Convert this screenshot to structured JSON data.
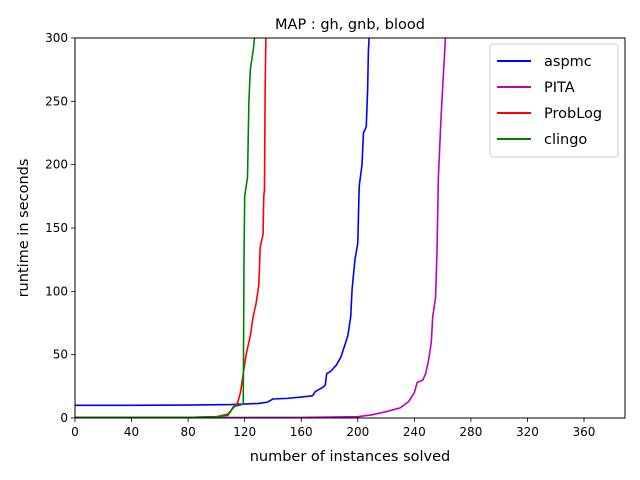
{
  "chart_data": {
    "type": "line",
    "title": "MAP : gh, gnb, blood",
    "xlabel": "number of instances solved",
    "ylabel": "runtime in seconds",
    "xlim": [
      0,
      389
    ],
    "ylim": [
      0,
      300
    ],
    "xticks": [
      0,
      40,
      80,
      120,
      160,
      200,
      240,
      280,
      320,
      360
    ],
    "yticks": [
      0,
      50,
      100,
      150,
      200,
      250,
      300
    ],
    "grid": false,
    "legend_position": "top-right",
    "series": [
      {
        "name": "aspmc",
        "color": "#0000ff",
        "points": [
          [
            0,
            10
          ],
          [
            40,
            10
          ],
          [
            80,
            10.2
          ],
          [
            110,
            10.6
          ],
          [
            120,
            11
          ],
          [
            130,
            11.5
          ],
          [
            136,
            12.5
          ],
          [
            140,
            15
          ],
          [
            150,
            15.5
          ],
          [
            160,
            16.5
          ],
          [
            168,
            17.5
          ],
          [
            170,
            21
          ],
          [
            175,
            24
          ],
          [
            177,
            26
          ],
          [
            178,
            35
          ],
          [
            181,
            37
          ],
          [
            185,
            42
          ],
          [
            188,
            48
          ],
          [
            191,
            58
          ],
          [
            193,
            65
          ],
          [
            195,
            80
          ],
          [
            196,
            102
          ],
          [
            198,
            125
          ],
          [
            200,
            138
          ],
          [
            201,
            183
          ],
          [
            203,
            200
          ],
          [
            204,
            225
          ],
          [
            206,
            230
          ],
          [
            207,
            260
          ],
          [
            207.5,
            290
          ],
          [
            208,
            300
          ]
        ]
      },
      {
        "name": "PITA",
        "color": "#bf00bf",
        "points": [
          [
            0,
            0.3
          ],
          [
            80,
            0.3
          ],
          [
            160,
            0.5
          ],
          [
            200,
            1
          ],
          [
            210,
            2.5
          ],
          [
            220,
            5
          ],
          [
            230,
            8
          ],
          [
            236,
            13
          ],
          [
            240,
            20
          ],
          [
            242,
            28
          ],
          [
            246,
            30
          ],
          [
            248,
            35
          ],
          [
            250,
            45
          ],
          [
            252,
            60
          ],
          [
            253,
            80
          ],
          [
            255,
            95
          ],
          [
            256,
            130
          ],
          [
            257,
            190
          ],
          [
            259,
            240
          ],
          [
            261,
            280
          ],
          [
            262,
            300
          ]
        ]
      },
      {
        "name": "ProbLog",
        "color": "#ff0000",
        "points": [
          [
            0,
            0.5
          ],
          [
            80,
            0.5
          ],
          [
            100,
            1
          ],
          [
            108,
            3
          ],
          [
            112,
            8
          ],
          [
            115,
            12
          ],
          [
            117,
            20
          ],
          [
            119,
            35
          ],
          [
            121,
            50
          ],
          [
            124,
            65
          ],
          [
            126,
            80
          ],
          [
            128,
            90
          ],
          [
            130,
            105
          ],
          [
            131,
            135
          ],
          [
            133,
            145
          ],
          [
            133.5,
            175
          ],
          [
            134,
            180
          ],
          [
            134.5,
            260
          ],
          [
            135,
            300
          ]
        ]
      },
      {
        "name": "clingo",
        "color": "#008000",
        "points": [
          [
            0,
            0.5
          ],
          [
            80,
            0.5
          ],
          [
            100,
            1
          ],
          [
            108,
            2
          ],
          [
            110,
            5
          ],
          [
            112,
            9
          ],
          [
            116,
            10
          ],
          [
            119,
            11
          ],
          [
            119.5,
            120
          ],
          [
            120,
            175
          ],
          [
            122,
            190
          ],
          [
            123,
            250
          ],
          [
            124,
            275
          ],
          [
            126,
            290
          ],
          [
            127,
            300
          ]
        ]
      }
    ]
  }
}
